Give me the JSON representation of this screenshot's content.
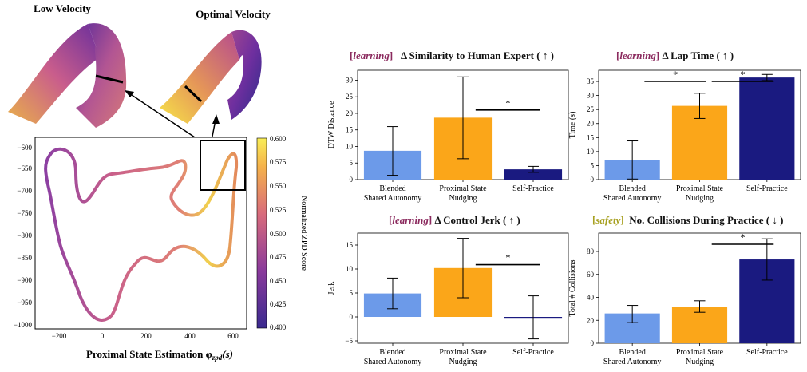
{
  "left_panel": {
    "label_low": "Low Velocity",
    "label_optimal": "Optimal Velocity",
    "map_xlabel": "Proximal State Estimation φ",
    "map_xlabel_sub": "zpd",
    "map_xlabel_tail": "(s)",
    "colorbar_label": "Normalized ZPD Score",
    "colorbar_ticks": [
      "0.600",
      "0.575",
      "0.550",
      "0.525",
      "0.500",
      "0.475",
      "0.450",
      "0.425",
      "0.400"
    ],
    "map_x_ticks": [
      "−200",
      "0",
      "200",
      "400",
      "600"
    ],
    "map_y_ticks": [
      "−600",
      "−650",
      "−700",
      "−750",
      "−800",
      "−850",
      "−900",
      "−950",
      "−1000"
    ],
    "colors": {
      "low": "#3b2a93",
      "mid": "#c75d8f",
      "high": "#f9e94a"
    }
  },
  "chart_data": [
    {
      "type": "bar",
      "tag": "learning",
      "tag_color": "#8b2a5e",
      "title": "Δ Similarity to Human Expert ( ↑ )",
      "ylabel": "DTW Distance",
      "categories": [
        "Blended\nShared Autonomy",
        "Proximal State\nNudging",
        "Self-Practice"
      ],
      "values": [
        8.7,
        18.7,
        3.1
      ],
      "err_low": [
        1.3,
        6.3,
        2.2
      ],
      "err_high": [
        16.0,
        31.0,
        4.0
      ],
      "colors": [
        "#6c9ae9",
        "#fba619",
        "#1a1a80"
      ],
      "ylim": [
        0,
        33
      ],
      "yticks": [
        0,
        5,
        10,
        15,
        20,
        25,
        30
      ],
      "significance": [
        {
          "from": 1,
          "to": 2,
          "label": "*"
        }
      ]
    },
    {
      "type": "bar",
      "tag": "learning",
      "tag_color": "#8b2a5e",
      "title": "Δ Lap Time ( ↑ )",
      "ylabel": "Time (s)",
      "categories": [
        "Blended\nShared Autonomy",
        "Proximal State\nNudging",
        "Self-Practice"
      ],
      "values": [
        7.0,
        26.3,
        36.4
      ],
      "err_low": [
        0.2,
        21.8,
        35.3
      ],
      "err_high": [
        13.8,
        30.8,
        37.5
      ],
      "colors": [
        "#6c9ae9",
        "#fba619",
        "#1a1a80"
      ],
      "ylim": [
        0,
        39
      ],
      "yticks": [
        0,
        5,
        10,
        15,
        20,
        25,
        30,
        35
      ],
      "significance": [
        {
          "from": 0,
          "to": 1,
          "label": "*"
        },
        {
          "from": 1,
          "to": 2,
          "label": "*"
        }
      ]
    },
    {
      "type": "bar",
      "tag": "learning",
      "tag_color": "#8b2a5e",
      "title": "Δ Control Jerk ( ↑ )",
      "ylabel": "Jerk",
      "categories": [
        "Blended\nShared Autonomy",
        "Proximal State\nNudging",
        "Self-Practice"
      ],
      "values": [
        4.9,
        10.2,
        -0.1
      ],
      "err_low": [
        1.7,
        4.0,
        -4.6
      ],
      "err_high": [
        8.1,
        16.4,
        4.4
      ],
      "colors": [
        "#6c9ae9",
        "#fba619",
        "#1a1a80"
      ],
      "ylim": [
        -5.5,
        17.5
      ],
      "yticks": [
        -5,
        0,
        5,
        10,
        15
      ],
      "significance": [
        {
          "from": 1,
          "to": 2,
          "label": "*"
        }
      ]
    },
    {
      "type": "bar",
      "tag": "safety",
      "tag_color": "#a7a020",
      "title": "No. Collisions During Practice ( ↓ )",
      "ylabel": "Total # Collisions",
      "categories": [
        "Blended\nShared Autonomy",
        "Proximal State\nNudging",
        "Self-Practice"
      ],
      "values": [
        26,
        32,
        73
      ],
      "err_low": [
        18,
        27,
        55
      ],
      "err_high": [
        33,
        37,
        91
      ],
      "colors": [
        "#6c9ae9",
        "#fba619",
        "#1a1a80"
      ],
      "ylim": [
        0,
        96
      ],
      "yticks": [
        0,
        20,
        40,
        60,
        80
      ],
      "significance": [
        {
          "from": 1,
          "to": 2,
          "label": "*"
        }
      ]
    }
  ]
}
